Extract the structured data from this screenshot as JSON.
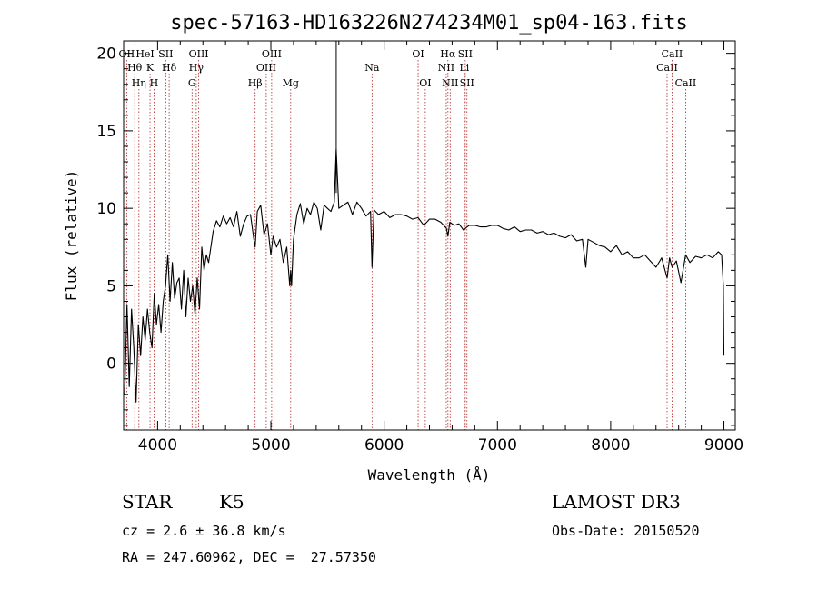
{
  "chart_data": {
    "type": "line",
    "title": "spec-57163-HD163226N274234M01_sp04-163.fits",
    "xlabel": "Wavelength (Å)",
    "ylabel": "Flux (relative)",
    "xlim": [
      3700,
      9100
    ],
    "ylim": [
      -4.3,
      20.8
    ],
    "x_ticks": [
      4000,
      5000,
      6000,
      7000,
      8000,
      9000
    ],
    "y_ticks": [
      0,
      5,
      10,
      15,
      20
    ],
    "grid": false,
    "series": [
      {
        "name": "flux",
        "x": [
          3710,
          3730,
          3750,
          3770,
          3790,
          3810,
          3830,
          3850,
          3870,
          3890,
          3910,
          3930,
          3950,
          3970,
          3990,
          4010,
          4030,
          4050,
          4070,
          4090,
          4110,
          4130,
          4150,
          4170,
          4190,
          4210,
          4230,
          4250,
          4270,
          4290,
          4310,
          4330,
          4350,
          4370,
          4390,
          4410,
          4430,
          4450,
          4470,
          4490,
          4520,
          4550,
          4580,
          4610,
          4640,
          4670,
          4700,
          4730,
          4760,
          4790,
          4820,
          4850,
          4861,
          4880,
          4910,
          4940,
          4970,
          5000,
          5020,
          5050,
          5080,
          5110,
          5140,
          5167,
          5175,
          5183,
          5200,
          5230,
          5260,
          5290,
          5320,
          5350,
          5380,
          5410,
          5440,
          5470,
          5500,
          5530,
          5560,
          5577,
          5600,
          5640,
          5680,
          5720,
          5760,
          5800,
          5840,
          5880,
          5893,
          5910,
          5950,
          6000,
          6050,
          6100,
          6150,
          6200,
          6250,
          6300,
          6350,
          6400,
          6450,
          6500,
          6550,
          6563,
          6580,
          6620,
          6660,
          6700,
          6750,
          6800,
          6850,
          6900,
          6950,
          7000,
          7050,
          7100,
          7150,
          7200,
          7250,
          7300,
          7350,
          7400,
          7450,
          7500,
          7550,
          7600,
          7650,
          7700,
          7750,
          7780,
          7800,
          7850,
          7900,
          7950,
          8000,
          8050,
          8100,
          8150,
          8200,
          8250,
          8300,
          8350,
          8400,
          8450,
          8498,
          8520,
          8542,
          8580,
          8620,
          8662,
          8700,
          8750,
          8800,
          8850,
          8900,
          8950,
          8980,
          8995,
          9000
        ],
        "values": [
          -2.0,
          3.8,
          -1.5,
          3.5,
          1.0,
          -2.5,
          2.5,
          0.5,
          3.0,
          1.5,
          3.5,
          2.0,
          1.0,
          4.5,
          2.5,
          3.8,
          2.0,
          4.0,
          5.0,
          7.0,
          4.0,
          6.5,
          4.2,
          5.2,
          5.5,
          3.5,
          6.0,
          3.0,
          5.5,
          4.0,
          5.0,
          3.2,
          5.5,
          3.5,
          7.5,
          6.0,
          7.0,
          6.5,
          7.5,
          8.5,
          9.2,
          8.8,
          9.5,
          9.0,
          9.4,
          8.8,
          9.8,
          8.2,
          9.0,
          9.5,
          9.6,
          8.0,
          7.5,
          9.8,
          10.2,
          8.3,
          9.0,
          7.0,
          8.2,
          7.5,
          8.0,
          6.5,
          7.5,
          5.0,
          6.0,
          5.0,
          8.0,
          9.6,
          10.3,
          9.0,
          10.0,
          9.6,
          10.4,
          10.0,
          8.6,
          10.2,
          10.0,
          9.8,
          10.4,
          13.8,
          10.0,
          10.2,
          10.4,
          9.6,
          10.4,
          10.0,
          9.5,
          9.8,
          6.2,
          9.9,
          9.6,
          9.8,
          9.4,
          9.6,
          9.6,
          9.5,
          9.3,
          9.4,
          8.9,
          9.3,
          9.3,
          9.1,
          8.7,
          8.2,
          9.1,
          8.9,
          9.0,
          8.6,
          8.9,
          8.9,
          8.8,
          8.8,
          8.9,
          8.9,
          8.7,
          8.6,
          8.8,
          8.5,
          8.6,
          8.6,
          8.4,
          8.5,
          8.3,
          8.4,
          8.2,
          8.1,
          8.3,
          7.9,
          8.0,
          6.2,
          8.0,
          7.8,
          7.6,
          7.5,
          7.2,
          7.6,
          7.0,
          7.2,
          6.8,
          6.8,
          7.0,
          6.6,
          6.2,
          6.8,
          5.5,
          6.8,
          6.2,
          6.6,
          5.2,
          7.0,
          6.5,
          6.9,
          6.8,
          7.0,
          6.8,
          7.2,
          7.0,
          5.0,
          0.5
        ]
      }
    ],
    "line_markers": [
      {
        "wl": 3727,
        "row": 0,
        "label": "OII"
      },
      {
        "wl": 3798,
        "row": 1,
        "label": "Hθ"
      },
      {
        "wl": 3835,
        "row": 2,
        "label": "Hη"
      },
      {
        "wl": 3889,
        "row": 0,
        "label": "HeI"
      },
      {
        "wl": 3933,
        "row": 1,
        "label": "K"
      },
      {
        "wl": 3968,
        "row": 2,
        "label": "H"
      },
      {
        "wl": 4072,
        "row": 0,
        "label": "SII"
      },
      {
        "wl": 4102,
        "row": 1,
        "label": "Hδ"
      },
      {
        "wl": 4304,
        "row": 2,
        "label": "G"
      },
      {
        "wl": 4341,
        "row": 1,
        "label": "Hγ"
      },
      {
        "wl": 4363,
        "row": 0,
        "label": "OIII"
      },
      {
        "wl": 4861,
        "row": 2,
        "label": "Hβ"
      },
      {
        "wl": 4959,
        "row": 1,
        "label": "OIII"
      },
      {
        "wl": 5007,
        "row": 0,
        "label": "OIII"
      },
      {
        "wl": 5175,
        "row": 2,
        "label": "Mg"
      },
      {
        "wl": 5893,
        "row": 1,
        "label": "Na"
      },
      {
        "wl": 6300,
        "row": 0,
        "label": "OI"
      },
      {
        "wl": 6363,
        "row": 2,
        "label": "OI"
      },
      {
        "wl": 6548,
        "row": 1,
        "label": "NII"
      },
      {
        "wl": 6563,
        "row": 0,
        "label": "Hα"
      },
      {
        "wl": 6583,
        "row": 2,
        "label": "NII"
      },
      {
        "wl": 6708,
        "row": 1,
        "label": "Li"
      },
      {
        "wl": 6716,
        "row": 0,
        "label": "SII"
      },
      {
        "wl": 6731,
        "row": 2,
        "label": "SII"
      },
      {
        "wl": 8498,
        "row": 1,
        "label": "CaII"
      },
      {
        "wl": 8542,
        "row": 0,
        "label": "CaII"
      },
      {
        "wl": 8662,
        "row": 2,
        "label": "CaII"
      }
    ]
  },
  "info": {
    "object_class": "STAR",
    "subclass": "K5",
    "survey": "LAMOST DR3",
    "redshift": "cz = 2.6 ± 36.8 km/s",
    "obs_date": "Obs-Date: 20150520",
    "coords": "RA = 247.60962, DEC =  27.57350"
  },
  "colors": {
    "line_marker": "#b22222",
    "spectrum": "#000000"
  }
}
